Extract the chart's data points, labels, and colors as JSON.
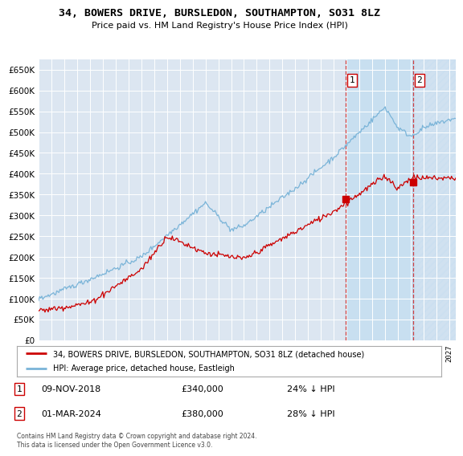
{
  "title": "34, BOWERS DRIVE, BURSLEDON, SOUTHAMPTON, SO31 8LZ",
  "subtitle": "Price paid vs. HM Land Registry's House Price Index (HPI)",
  "ylim": [
    0,
    675000
  ],
  "yticks": [
    0,
    50000,
    100000,
    150000,
    200000,
    250000,
    300000,
    350000,
    400000,
    450000,
    500000,
    550000,
    600000,
    650000
  ],
  "background_color": "#ffffff",
  "plot_bg_color": "#dce6f1",
  "hpi_color": "#7ab4d8",
  "price_color": "#cc0000",
  "vline_color": "#cc2222",
  "shade_color": "#c8dff0",
  "hatch_color": "#c8dff0",
  "marker1_price": 340000,
  "marker2_price": 380000,
  "sale1_date": "09-NOV-2018",
  "sale1_price": "£340,000",
  "sale1_hpi": "24% ↓ HPI",
  "sale2_date": "01-MAR-2024",
  "sale2_price": "£380,000",
  "sale2_hpi": "28% ↓ HPI",
  "legend_label1": "34, BOWERS DRIVE, BURSLEDON, SOUTHAMPTON, SO31 8LZ (detached house)",
  "legend_label2": "HPI: Average price, detached house, Eastleigh",
  "footer": "Contains HM Land Registry data © Crown copyright and database right 2024.\nThis data is licensed under the Open Government Licence v3.0.",
  "xlim_left": 1995.0,
  "xlim_right": 2027.5,
  "marker1_date": 2018.917,
  "marker2_date": 2024.167
}
